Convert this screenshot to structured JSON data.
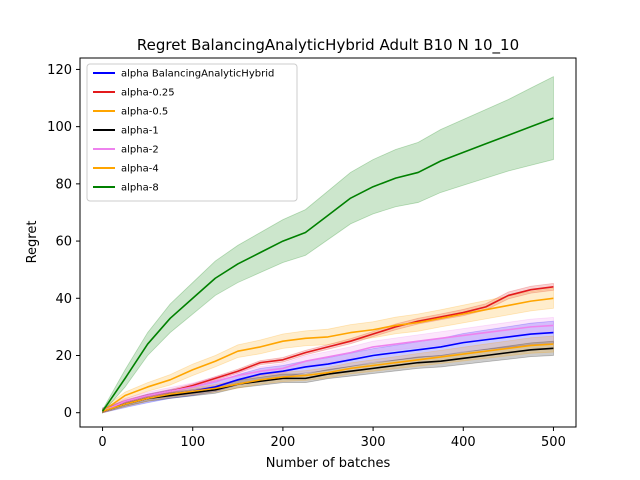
{
  "chart_data": {
    "type": "line",
    "title": "Regret BalancingAnalyticHybrid Adult B10 N 10_10",
    "xlabel": "Number of batches",
    "ylabel": "Regret",
    "xlim": [
      -25,
      525
    ],
    "ylim": [
      -5,
      124
    ],
    "xticks": [
      0,
      100,
      200,
      300,
      400,
      500
    ],
    "yticks": [
      0,
      20,
      40,
      60,
      80,
      100,
      120
    ],
    "grid": false,
    "legend": "top-left",
    "x": [
      0,
      25,
      50,
      75,
      100,
      125,
      150,
      175,
      200,
      225,
      250,
      275,
      300,
      325,
      350,
      375,
      400,
      425,
      450,
      475,
      500
    ],
    "series": [
      {
        "name": "alpha BalancingAnalyticHybrid",
        "color": "#0000ff",
        "values": [
          0.5,
          3,
          5,
          6.5,
          7.5,
          9,
          11.5,
          13.5,
          14.5,
          16,
          17,
          18.5,
          20,
          21,
          22,
          23,
          24.5,
          25.5,
          26.5,
          27.5,
          28
        ],
        "band": [
          1.2,
          1.2,
          1.5,
          1.5,
          1.5,
          1.6,
          1.8,
          2,
          2,
          2.1,
          2.2,
          2.3,
          2.4,
          2.6,
          2.8,
          3,
          3.2,
          3.4,
          3.6,
          3.8,
          4
        ]
      },
      {
        "name": "alpha-0.25",
        "color": "#e31a1c",
        "values": [
          0.5,
          4,
          6,
          7.5,
          9.5,
          12,
          14.5,
          17.5,
          18.5,
          21,
          23,
          25,
          27.5,
          30,
          32,
          33.5,
          35,
          37,
          41,
          43,
          44
        ],
        "band": [
          0.5,
          0.5,
          0.5,
          0.6,
          0.6,
          0.6,
          0.7,
          0.7,
          0.8,
          0.8,
          0.8,
          0.9,
          0.9,
          1,
          1,
          1,
          1.1,
          1.1,
          1.2,
          1.2,
          1.2
        ]
      },
      {
        "name": "alpha-0.5",
        "color": "#ffa500",
        "values": [
          0.5,
          6,
          9,
          11.5,
          15,
          18,
          21.5,
          23,
          25,
          26,
          26.5,
          28,
          29,
          30.5,
          31.5,
          33,
          34.5,
          36,
          37.5,
          39,
          40
        ],
        "band": [
          1,
          1.2,
          1.5,
          1.8,
          2,
          2,
          2.2,
          2.4,
          2.5,
          2.6,
          2.7,
          2.8,
          2.8,
          2.9,
          3,
          3,
          3.1,
          3.2,
          3.3,
          3.4,
          3.5
        ]
      },
      {
        "name": "alpha-1",
        "color": "#000000",
        "values": [
          0.5,
          3,
          5,
          6,
          7,
          8,
          10,
          11,
          12,
          12,
          13.5,
          14.5,
          15.5,
          16.5,
          17.5,
          18,
          19,
          20,
          21,
          22,
          22.5
        ],
        "band": [
          0.8,
          0.8,
          1,
          1,
          1.1,
          1.2,
          1.3,
          1.4,
          1.5,
          1.5,
          1.6,
          1.7,
          1.8,
          1.9,
          2,
          2,
          2.1,
          2.2,
          2.3,
          2.4,
          2.5
        ]
      },
      {
        "name": "alpha-2",
        "color": "#ee82ee",
        "values": [
          0.5,
          4,
          6,
          7.5,
          9,
          11,
          13,
          14.5,
          15.5,
          18,
          19.5,
          21,
          23,
          24,
          25,
          26,
          27,
          28,
          29,
          30,
          30.5
        ],
        "band": [
          1,
          1,
          1.2,
          1.3,
          1.4,
          1.5,
          1.5,
          1.6,
          1.7,
          1.8,
          1.9,
          2,
          2,
          2.1,
          2.2,
          2.3,
          2.4,
          2.5,
          2.6,
          2.7,
          2.8
        ]
      },
      {
        "name": "alpha-4",
        "color": "#ffa500",
        "values": [
          0.5,
          3,
          5,
          6.5,
          7.5,
          8.5,
          10,
          11.5,
          12.5,
          13,
          14,
          15.5,
          16.5,
          17.5,
          18.5,
          19.5,
          20.5,
          21.5,
          22.5,
          23.5,
          24
        ],
        "band": [
          0.8,
          0.9,
          1,
          1.1,
          1.2,
          1.3,
          1.4,
          1.5,
          1.6,
          1.7,
          1.8,
          1.9,
          2,
          2.1,
          2.2,
          2.3,
          2.4,
          2.5,
          2.6,
          2.7,
          2.8
        ]
      },
      {
        "name": "alpha-8",
        "color": "#008000",
        "values": [
          0.5,
          12,
          24,
          33,
          40,
          47,
          52,
          56,
          60,
          63,
          69,
          75,
          79,
          82,
          84,
          88,
          91,
          94,
          97,
          100,
          103
        ],
        "band": [
          0.5,
          3,
          4,
          5,
          5.5,
          6,
          6.5,
          7,
          7.5,
          8,
          8.5,
          9,
          9.5,
          10,
          10.5,
          11,
          11.5,
          12,
          12.5,
          13.5,
          14.5
        ]
      }
    ]
  }
}
